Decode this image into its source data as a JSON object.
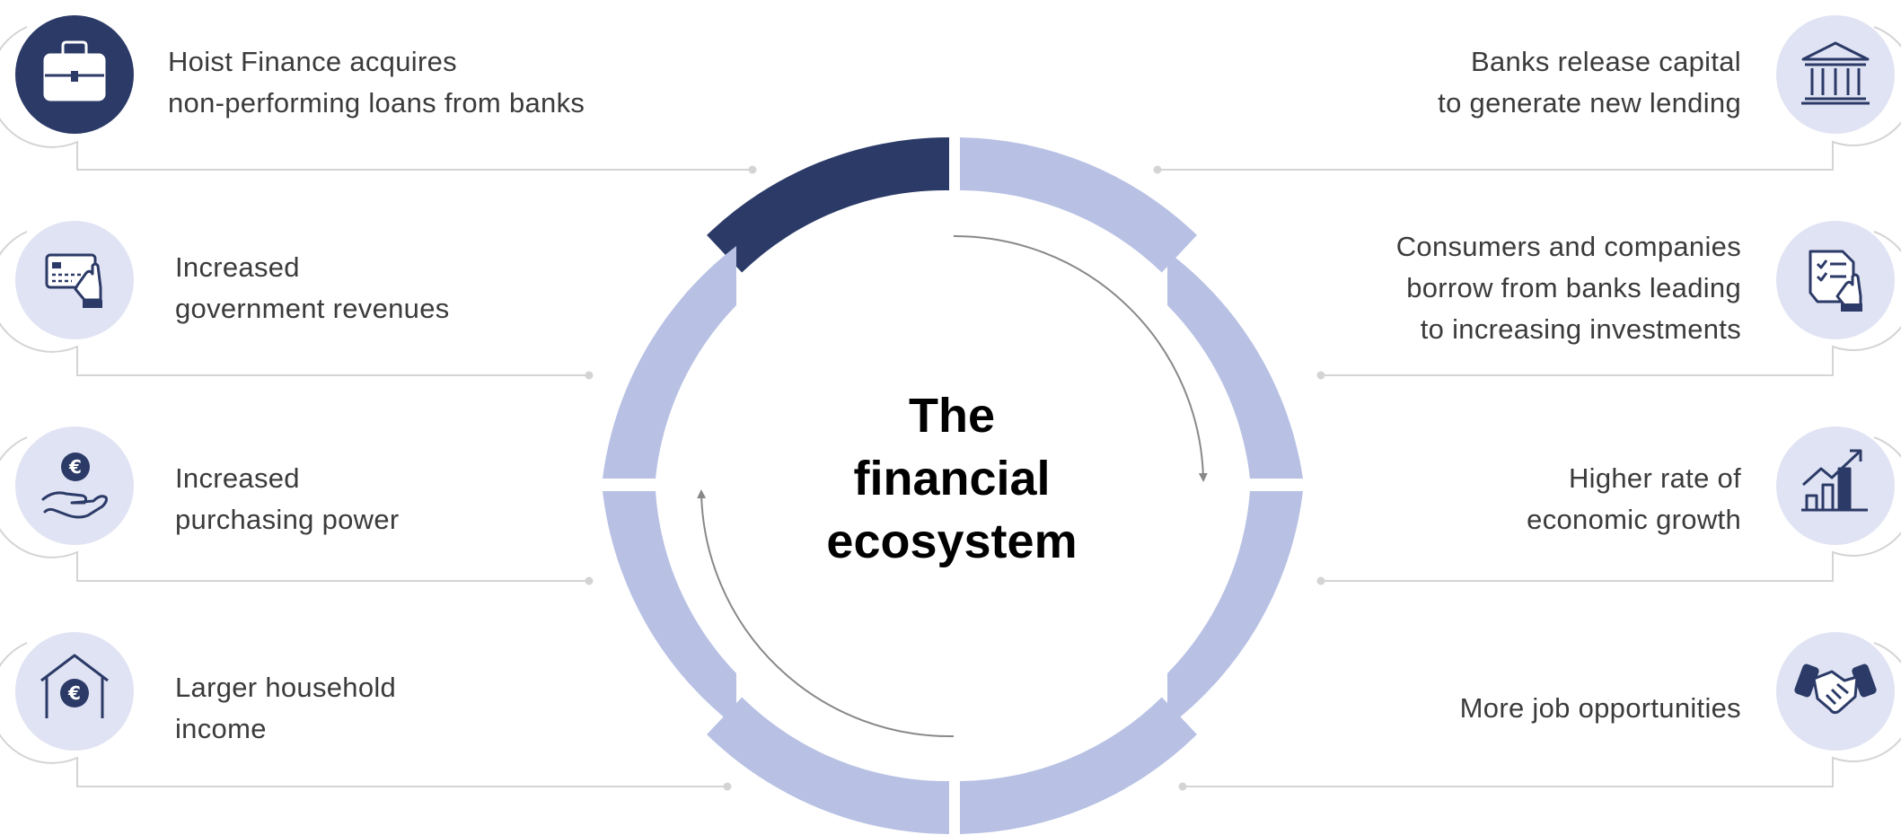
{
  "center_title": [
    "The",
    "financial",
    "ecosystem"
  ],
  "colors": {
    "active_segment": "#2b3a67",
    "segment": "#b8c1e4",
    "icon_bg": "#e0e3f3",
    "icon_dark": "#2b3a67",
    "connector": "#d4d4d4",
    "arrow": "#888888",
    "text": "#3b3b3b"
  },
  "left_items": [
    {
      "icon": "briefcase-icon",
      "lines": [
        "Hoist Finance acquires",
        "non-performing loans from banks"
      ],
      "active": true
    },
    {
      "icon": "card-payment-icon",
      "lines": [
        "Increased",
        "government revenues"
      ],
      "active": false
    },
    {
      "icon": "euro-hand-icon",
      "lines": [
        "Increased",
        "purchasing power"
      ],
      "active": false
    },
    {
      "icon": "euro-house-icon",
      "lines": [
        "Larger household",
        "income"
      ],
      "active": false
    }
  ],
  "right_items": [
    {
      "icon": "bank-icon",
      "lines": [
        "Banks release capital",
        "to generate new lending"
      ],
      "active": false
    },
    {
      "icon": "document-hand-icon",
      "lines": [
        "Consumers and companies",
        "borrow from banks leading",
        "to increasing investments"
      ],
      "active": false
    },
    {
      "icon": "growth-chart-icon",
      "lines": [
        "Higher rate of",
        "economic growth"
      ],
      "active": false
    },
    {
      "icon": "handshake-icon",
      "lines": [
        "More job opportunities"
      ],
      "active": false
    }
  ]
}
